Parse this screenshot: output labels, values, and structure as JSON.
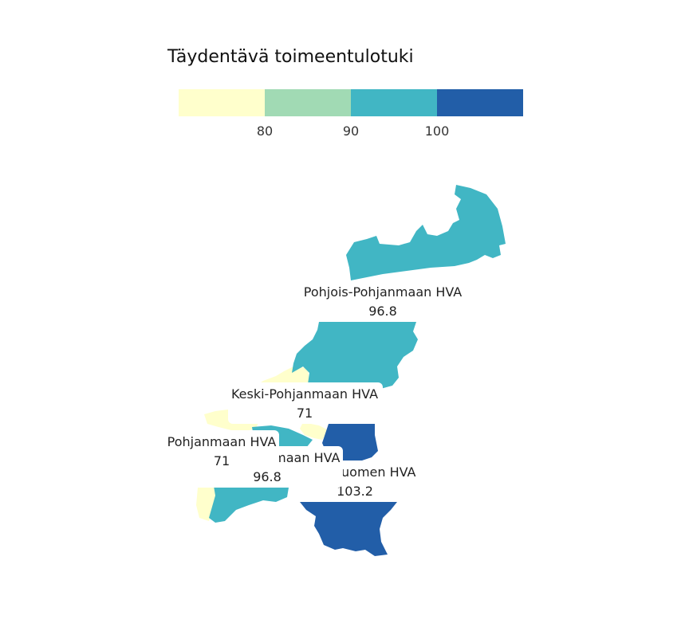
{
  "legend": {
    "title": "Täydentävä toimeentulotuki",
    "colors": [
      "#ffffcc",
      "#a1dab4",
      "#41b6c4",
      "#225ea8"
    ],
    "ticks": [
      "80",
      "90",
      "100"
    ]
  },
  "regions": [
    {
      "id": "pohjois-pohjanmaa",
      "name": "Pohjois-Pohjanmaan HVA",
      "value": "96.8",
      "color": "#41b6c4"
    },
    {
      "id": "keski-pohjanmaa",
      "name": "Keski-Pohjanmaan HVA",
      "value": "71",
      "color": "#ffffcc"
    },
    {
      "id": "keski-suomi",
      "name": "Keski-Suomen HVA",
      "value": "103.2",
      "color": "#225ea8"
    },
    {
      "id": "pohjanmaa",
      "name": "Pohjanmaan HVA",
      "value": "71",
      "color": "#ffffcc"
    },
    {
      "id": "etela-pohjanmaa",
      "name": "Etelä-Pohjanmaan HVA",
      "value": "96.8",
      "color": "#41b6c4"
    }
  ]
}
